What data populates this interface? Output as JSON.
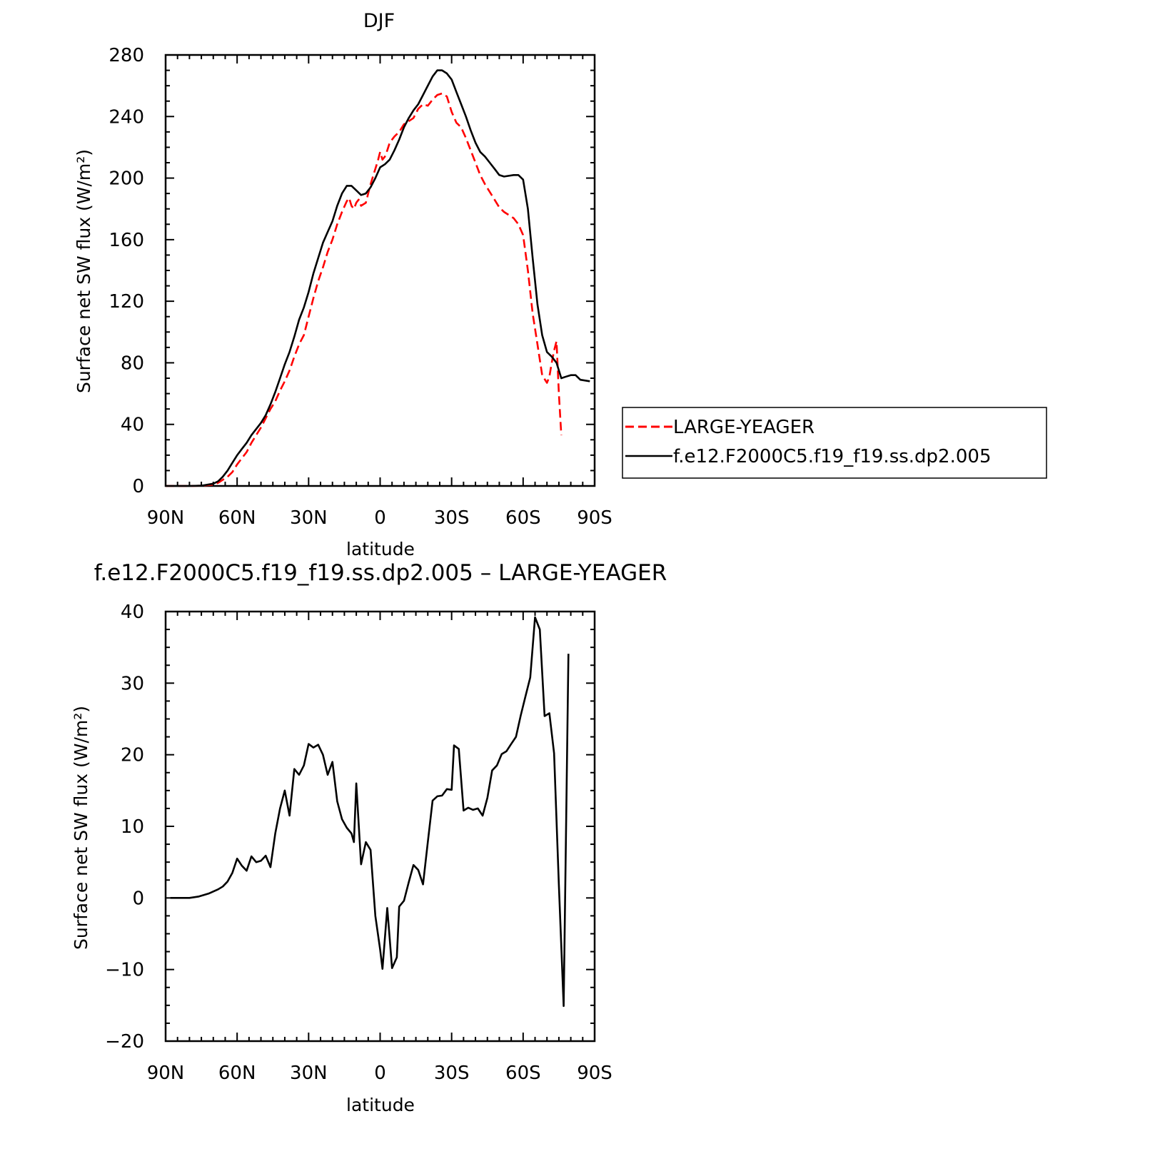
{
  "chart_data": [
    {
      "type": "line",
      "title": "DJF",
      "xlabel": "latitude",
      "ylabel": "Surface net SW flux (W/m²)",
      "xlim": [
        90,
        -90
      ],
      "ylim": [
        0,
        280
      ],
      "x_ticks": [
        90,
        60,
        30,
        0,
        -30,
        -60,
        -90
      ],
      "x_tick_labels": [
        "90N",
        "60N",
        "30N",
        "0",
        "30S",
        "60S",
        "90S"
      ],
      "y_ticks": [
        0,
        40,
        80,
        120,
        160,
        200,
        240,
        280
      ],
      "y_tick_labels": [
        "0",
        "40",
        "80",
        "120",
        "160",
        "200",
        "240",
        "280"
      ],
      "legend_position": "right",
      "series": [
        {
          "name": "LARGE-YEAGER",
          "color": "#ff0000",
          "dash": true,
          "points": [
            [
              90,
              0
            ],
            [
              80,
              0
            ],
            [
              75,
              0.2
            ],
            [
              70,
              0.8
            ],
            [
              68,
              2
            ],
            [
              66,
              4
            ],
            [
              64,
              6
            ],
            [
              62,
              9
            ],
            [
              60,
              14
            ],
            [
              58,
              18
            ],
            [
              56,
              22
            ],
            [
              54,
              28
            ],
            [
              52,
              33
            ],
            [
              50,
              38
            ],
            [
              48,
              44
            ],
            [
              46,
              50
            ],
            [
              44,
              55
            ],
            [
              42,
              62
            ],
            [
              40,
              68
            ],
            [
              38,
              75
            ],
            [
              36,
              84
            ],
            [
              34,
              92
            ],
            [
              32,
              98
            ],
            [
              30,
              110
            ],
            [
              28,
              122
            ],
            [
              26,
              133
            ],
            [
              24,
              142
            ],
            [
              22,
              152
            ],
            [
              20,
              160
            ],
            [
              18,
              170
            ],
            [
              16,
              178
            ],
            [
              14,
              185
            ],
            [
              13,
              187
            ],
            [
              12,
              182
            ],
            [
              11,
              180
            ],
            [
              10,
              184
            ],
            [
              9,
              186
            ],
            [
              8,
              182
            ],
            [
              6,
              184
            ],
            [
              4,
              196
            ],
            [
              2,
              206
            ],
            [
              1,
              211
            ],
            [
              0,
              217
            ],
            [
              -1,
              212
            ],
            [
              -2,
              214
            ],
            [
              -3,
              218
            ],
            [
              -4,
              223
            ],
            [
              -6,
              227
            ],
            [
              -8,
              230
            ],
            [
              -10,
              235
            ],
            [
              -12,
              237
            ],
            [
              -14,
              239
            ],
            [
              -16,
              245
            ],
            [
              -18,
              248
            ],
            [
              -20,
              247
            ],
            [
              -22,
              251
            ],
            [
              -24,
              254
            ],
            [
              -26,
              255
            ],
            [
              -28,
              253
            ],
            [
              -30,
              243
            ],
            [
              -32,
              236
            ],
            [
              -34,
              233
            ],
            [
              -36,
              226
            ],
            [
              -38,
              218
            ],
            [
              -40,
              210
            ],
            [
              -42,
              202
            ],
            [
              -44,
              196
            ],
            [
              -46,
              191
            ],
            [
              -48,
              186
            ],
            [
              -50,
              181
            ],
            [
              -52,
              178
            ],
            [
              -54,
              176
            ],
            [
              -56,
              174
            ],
            [
              -58,
              170
            ],
            [
              -60,
              163
            ],
            [
              -62,
              140
            ],
            [
              -64,
              112
            ],
            [
              -66,
              92
            ],
            [
              -68,
              72
            ],
            [
              -70,
              67
            ],
            [
              -71,
              71
            ],
            [
              -72,
              80
            ],
            [
              -73,
              88
            ],
            [
              -74,
              94
            ],
            [
              -75,
              60
            ],
            [
              -76,
              33
            ]
          ]
        },
        {
          "name": "f.e12.F2000C5.f19_f19.ss.dp2.005",
          "color": "#000000",
          "dash": false,
          "points": [
            [
              90,
              0
            ],
            [
              80,
              0
            ],
            [
              75,
              0.2
            ],
            [
              70,
              1.5
            ],
            [
              68,
              3
            ],
            [
              66,
              6
            ],
            [
              64,
              10
            ],
            [
              62,
              15
            ],
            [
              60,
              20
            ],
            [
              58,
              24
            ],
            [
              56,
              28
            ],
            [
              54,
              33
            ],
            [
              52,
              37
            ],
            [
              50,
              41
            ],
            [
              48,
              46
            ],
            [
              46,
              53
            ],
            [
              44,
              61
            ],
            [
              42,
              70
            ],
            [
              40,
              79
            ],
            [
              38,
              87
            ],
            [
              36,
              97
            ],
            [
              34,
              108
            ],
            [
              32,
              116
            ],
            [
              30,
              126
            ],
            [
              28,
              138
            ],
            [
              26,
              148
            ],
            [
              24,
              158
            ],
            [
              22,
              165
            ],
            [
              20,
              172
            ],
            [
              18,
              182
            ],
            [
              16,
              190
            ],
            [
              14,
              195
            ],
            [
              12,
              195
            ],
            [
              10,
              192
            ],
            [
              8,
              189
            ],
            [
              6,
              190
            ],
            [
              4,
              194
            ],
            [
              2,
              200
            ],
            [
              0,
              207
            ],
            [
              -2,
              209
            ],
            [
              -4,
              212
            ],
            [
              -6,
              218
            ],
            [
              -8,
              225
            ],
            [
              -10,
              233
            ],
            [
              -12,
              239
            ],
            [
              -14,
              244
            ],
            [
              -16,
              248
            ],
            [
              -18,
              254
            ],
            [
              -20,
              260
            ],
            [
              -22,
              266
            ],
            [
              -24,
              270
            ],
            [
              -26,
              270
            ],
            [
              -28,
              268
            ],
            [
              -30,
              264
            ],
            [
              -32,
              256
            ],
            [
              -34,
              248
            ],
            [
              -36,
              240
            ],
            [
              -38,
              231
            ],
            [
              -40,
              223
            ],
            [
              -42,
              217
            ],
            [
              -44,
              214
            ],
            [
              -46,
              210
            ],
            [
              -48,
              206
            ],
            [
              -50,
              202
            ],
            [
              -52,
              201
            ],
            [
              -56,
              202
            ],
            [
              -58,
              202
            ],
            [
              -60,
              199
            ],
            [
              -62,
              180
            ],
            [
              -64,
              148
            ],
            [
              -66,
              118
            ],
            [
              -68,
              98
            ],
            [
              -70,
              87
            ],
            [
              -72,
              84
            ],
            [
              -74,
              80
            ],
            [
              -76,
              70
            ],
            [
              -78,
              71
            ],
            [
              -80,
              72
            ],
            [
              -82,
              72
            ],
            [
              -84,
              69
            ],
            [
              -88,
              68
            ]
          ]
        }
      ]
    },
    {
      "type": "line",
      "title": "f.e12.F2000C5.f19_f19.ss.dp2.005 – LARGE-YEAGER",
      "xlabel": "latitude",
      "ylabel": "Surface net SW flux (W/m²)",
      "xlim": [
        90,
        -90
      ],
      "ylim": [
        -20,
        40
      ],
      "x_ticks": [
        90,
        60,
        30,
        0,
        -30,
        -60,
        -90
      ],
      "x_tick_labels": [
        "90N",
        "60N",
        "30N",
        "0",
        "30S",
        "60S",
        "90S"
      ],
      "y_ticks": [
        -20,
        -10,
        0,
        10,
        20,
        30,
        40
      ],
      "y_tick_labels": [
        "−20",
        "−10",
        "0",
        "10",
        "20",
        "30",
        "40"
      ],
      "series": [
        {
          "color": "#000000",
          "dash": false,
          "points": [
            [
              88,
              0
            ],
            [
              80,
              0
            ],
            [
              78,
              0.1
            ],
            [
              76,
              0.2
            ],
            [
              74,
              0.4
            ],
            [
              72,
              0.6
            ],
            [
              70,
              0.9
            ],
            [
              68,
              1.2
            ],
            [
              66,
              1.6
            ],
            [
              64,
              2.3
            ],
            [
              62,
              3.5
            ],
            [
              60,
              5.5
            ],
            [
              58,
              4.5
            ],
            [
              56,
              3.8
            ],
            [
              54,
              5.8
            ],
            [
              52,
              5
            ],
            [
              50,
              5.2
            ],
            [
              48,
              5.9
            ],
            [
              46,
              4.3
            ],
            [
              44,
              9
            ],
            [
              42,
              12.5
            ],
            [
              40,
              15
            ],
            [
              38,
              11.5
            ],
            [
              36,
              18
            ],
            [
              34,
              17.2
            ],
            [
              32,
              18.5
            ],
            [
              30,
              21.5
            ],
            [
              28,
              21
            ],
            [
              26,
              21.4
            ],
            [
              24,
              20
            ],
            [
              22,
              17.2
            ],
            [
              20,
              19
            ],
            [
              18,
              13.5
            ],
            [
              16,
              11
            ],
            [
              14,
              9.8
            ],
            [
              12,
              9
            ],
            [
              11,
              7.8
            ],
            [
              10,
              16
            ],
            [
              8,
              4.7
            ],
            [
              6,
              7.8
            ],
            [
              4,
              6.7
            ],
            [
              2,
              -2.5
            ],
            [
              0,
              -7.2
            ],
            [
              -1,
              -9.9
            ],
            [
              -3,
              -1.4
            ],
            [
              -5,
              -9.8
            ],
            [
              -7,
              -8.3
            ],
            [
              -8,
              -1.2
            ],
            [
              -10,
              -0.4
            ],
            [
              -12,
              2.2
            ],
            [
              -14,
              4.6
            ],
            [
              -16,
              3.9
            ],
            [
              -18,
              1.9
            ],
            [
              -20,
              7.8
            ],
            [
              -22,
              13.6
            ],
            [
              -24,
              14.2
            ],
            [
              -26,
              14.3
            ],
            [
              -28,
              15.2
            ],
            [
              -30,
              15.1
            ],
            [
              -31,
              21.3
            ],
            [
              -33,
              20.8
            ],
            [
              -35,
              12.2
            ],
            [
              -37,
              12.6
            ],
            [
              -39,
              12.3
            ],
            [
              -41,
              12.5
            ],
            [
              -43,
              11.5
            ],
            [
              -45,
              14
            ],
            [
              -47,
              17.8
            ],
            [
              -49,
              18.5
            ],
            [
              -51,
              20.1
            ],
            [
              -53,
              20.5
            ],
            [
              -55,
              21.5
            ],
            [
              -57,
              22.5
            ],
            [
              -59,
              25.5
            ],
            [
              -61,
              28.2
            ],
            [
              -63,
              30.8
            ],
            [
              -65,
              39.2
            ],
            [
              -67,
              37.5
            ],
            [
              -69,
              25.4
            ],
            [
              -71,
              25.8
            ],
            [
              -73,
              20.2
            ],
            [
              -75,
              1.8
            ],
            [
              -77,
              -15.1
            ],
            [
              -79,
              34.1
            ]
          ]
        }
      ]
    }
  ]
}
